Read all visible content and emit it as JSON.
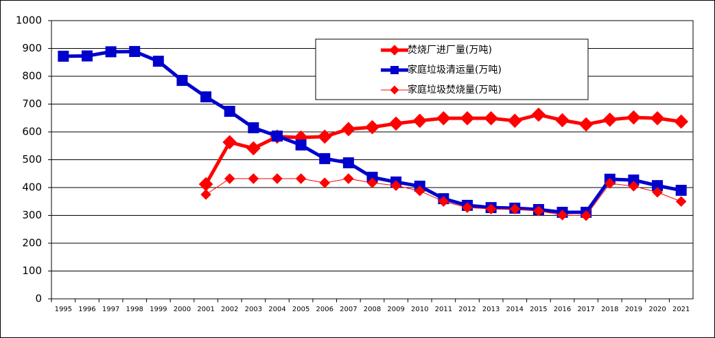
{
  "chart_data": {
    "type": "line",
    "categories": [
      "1995",
      "1996",
      "1997",
      "1998",
      "1999",
      "2000",
      "2001",
      "2002",
      "2003",
      "2004",
      "2005",
      "2006",
      "2007",
      "2008",
      "2009",
      "2010",
      "2011",
      "2012",
      "2013",
      "2014",
      "2015",
      "2016",
      "2017",
      "2018",
      "2019",
      "2020",
      "2021"
    ],
    "series": [
      {
        "name": "焚烧厂进厂量(万吨)",
        "color": "#ff0000",
        "marker": "diamond",
        "line_width": 5,
        "values": [
          null,
          null,
          null,
          null,
          null,
          null,
          412,
          563,
          541,
          583,
          580,
          583,
          610,
          617,
          630,
          640,
          649,
          649,
          649,
          640,
          662,
          642,
          627,
          644,
          652,
          649,
          637
        ]
      },
      {
        "name": "家庭垃圾清运量(万吨)",
        "color": "#0000cc",
        "marker": "square",
        "line_width": 5,
        "values": [
          872,
          873,
          888,
          889,
          854,
          785,
          726,
          674,
          615,
          585,
          553,
          504,
          489,
          437,
          420,
          405,
          360,
          336,
          328,
          326,
          321,
          311,
          311,
          430,
          427,
          407,
          390
        ]
      },
      {
        "name": "家庭垃圾焚烧量(万吨)",
        "color": "#ff0000",
        "marker": "diamond",
        "line_width": 1,
        "values": [
          null,
          null,
          null,
          null,
          null,
          null,
          375,
          432,
          432,
          432,
          432,
          417,
          432,
          417,
          407,
          388,
          350,
          328,
          323,
          323,
          316,
          301,
          299,
          415,
          405,
          383,
          350
        ]
      }
    ],
    "ylim": [
      0,
      1000
    ],
    "yticks": [
      0,
      100,
      200,
      300,
      400,
      500,
      600,
      700,
      800,
      900,
      1000
    ],
    "grid": true
  }
}
